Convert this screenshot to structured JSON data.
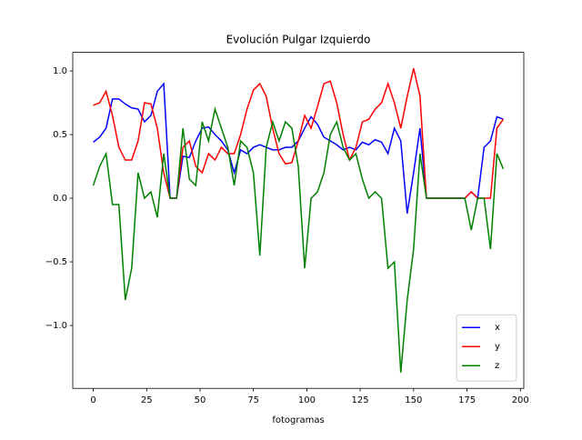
{
  "chart_data": {
    "type": "line",
    "title": "Evolución Pulgar Izquierdo",
    "x_label": "fotogramas",
    "x": [
      0,
      3,
      6,
      9,
      12,
      15,
      18,
      21,
      24,
      27,
      30,
      33,
      36,
      39,
      42,
      45,
      48,
      51,
      54,
      57,
      60,
      63,
      66,
      69,
      72,
      75,
      78,
      81,
      84,
      87,
      90,
      93,
      96,
      99,
      102,
      105,
      108,
      111,
      114,
      117,
      120,
      123,
      126,
      129,
      132,
      135,
      138,
      141,
      144,
      147,
      150,
      153,
      156,
      159,
      162,
      165,
      168,
      171,
      174,
      177,
      180,
      183,
      186,
      189,
      192
    ],
    "series": [
      {
        "name": "x",
        "color": "#0000ff",
        "values": [
          0.44,
          0.48,
          0.55,
          0.78,
          0.78,
          0.74,
          0.71,
          0.7,
          0.6,
          0.65,
          0.84,
          0.9,
          0,
          0,
          0.33,
          0.32,
          0.45,
          0.55,
          0.56,
          0.5,
          0.45,
          0.38,
          0.2,
          0.38,
          0.35,
          0.4,
          0.42,
          0.4,
          0.38,
          0.38,
          0.4,
          0.4,
          0.45,
          0.55,
          0.64,
          0.58,
          0.48,
          0.45,
          0.42,
          0.38,
          0.4,
          0.38,
          0.44,
          0.42,
          0.46,
          0.44,
          0.35,
          0.55,
          0.45,
          -0.12,
          0.2,
          0.55,
          0,
          0,
          0,
          0,
          0,
          0,
          0,
          0.05,
          0,
          0.4,
          0.45,
          0.64,
          0.62
        ]
      },
      {
        "name": "y",
        "color": "#ff0000",
        "values": [
          0.73,
          0.75,
          0.84,
          0.65,
          0.4,
          0.3,
          0.3,
          0.45,
          0.75,
          0.74,
          0.55,
          0.2,
          0,
          0,
          0.4,
          0.45,
          0.25,
          0.2,
          0.35,
          0.3,
          0.4,
          0.35,
          0.35,
          0.5,
          0.7,
          0.85,
          0.9,
          0.8,
          0.55,
          0.35,
          0.27,
          0.28,
          0.45,
          0.65,
          0.55,
          0.72,
          0.9,
          0.92,
          0.75,
          0.5,
          0.3,
          0.4,
          0.6,
          0.62,
          0.7,
          0.75,
          0.9,
          0.75,
          0.55,
          0.8,
          1.02,
          0.8,
          0,
          0,
          0,
          0,
          0,
          0,
          0,
          0.05,
          0,
          0,
          0,
          0.55,
          0.62
        ]
      },
      {
        "name": "z",
        "color": "#008000",
        "values": [
          0.1,
          0.25,
          0.35,
          -0.05,
          -0.05,
          -0.8,
          -0.55,
          0.2,
          0.0,
          0.05,
          -0.15,
          0.35,
          0,
          0,
          0.55,
          0.15,
          0.1,
          0.6,
          0.45,
          0.7,
          0.55,
          0.4,
          0.1,
          0.45,
          0.4,
          0.2,
          -0.45,
          0.4,
          0.6,
          0.45,
          0.6,
          0.55,
          0.25,
          -0.55,
          0.0,
          0.05,
          0.2,
          0.5,
          0.6,
          0.4,
          0.3,
          0.35,
          0.15,
          0.0,
          0.05,
          0.0,
          -0.55,
          -0.5,
          -1.37,
          -0.8,
          -0.4,
          0.35,
          0,
          0,
          0,
          0,
          0,
          0,
          0,
          -0.25,
          0,
          0,
          -0.4,
          0.35,
          0.23
        ]
      }
    ],
    "xlim": [
      -9.6,
      201.6
    ],
    "xticks": [
      0,
      25,
      50,
      75,
      100,
      125,
      150,
      175,
      200
    ],
    "ylim": [
      -1.494,
      1.146
    ],
    "yticks": [
      {
        "value": -1,
        "label": "−1.0"
      },
      {
        "value": -0.5,
        "label": "−0.5"
      },
      {
        "value": 0,
        "label": "0.0"
      },
      {
        "value": 0.5,
        "label": "0.5"
      },
      {
        "value": 1,
        "label": "1.0"
      }
    ],
    "legend": "lower right"
  }
}
